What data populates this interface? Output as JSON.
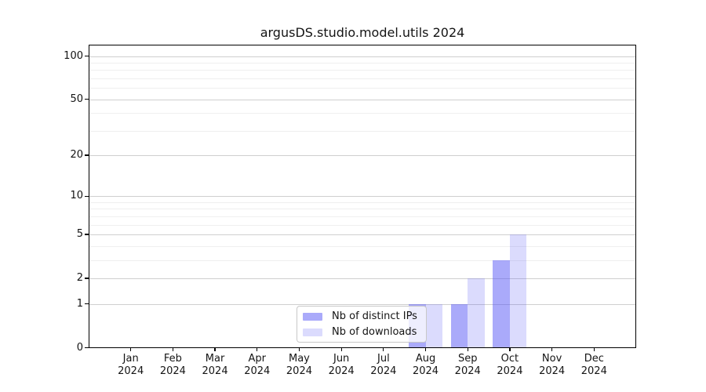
{
  "chart_data": {
    "type": "bar",
    "title": "argusDS.studio.model.utils 2024",
    "year_label": "2024",
    "categories": [
      "Jan",
      "Feb",
      "Mar",
      "Apr",
      "May",
      "Jun",
      "Jul",
      "Aug",
      "Sep",
      "Oct",
      "Nov",
      "Dec"
    ],
    "series": [
      {
        "name": "Nb of distinct IPs",
        "color": "rgba(85,85,245,0.5)",
        "values": [
          0,
          0,
          0,
          0,
          0,
          0,
          0,
          1,
          1,
          3,
          0,
          0
        ]
      },
      {
        "name": "Nb of downloads",
        "color": "rgba(85,85,245,0.21)",
        "values": [
          0,
          0,
          0,
          0,
          0,
          0,
          0,
          1,
          2,
          5,
          0,
          0
        ]
      }
    ],
    "y_scale": "log1p",
    "ylim": [
      0,
      120
    ],
    "y_ticks": [
      100,
      50,
      20,
      10,
      5,
      2,
      1,
      0
    ],
    "y_minor_ticks": [
      3,
      4,
      6,
      7,
      8,
      9,
      30,
      40,
      60,
      70,
      80,
      90
    ],
    "grid": true,
    "legend": {
      "position": "lower center",
      "entries": [
        "Nb of distinct IPs",
        "Nb of downloads"
      ]
    },
    "colors": {
      "major_grid": "#cfcfcf",
      "minor_grid": "#efefef",
      "spine": "#000000",
      "legend_border": "#c8c8c8"
    }
  }
}
